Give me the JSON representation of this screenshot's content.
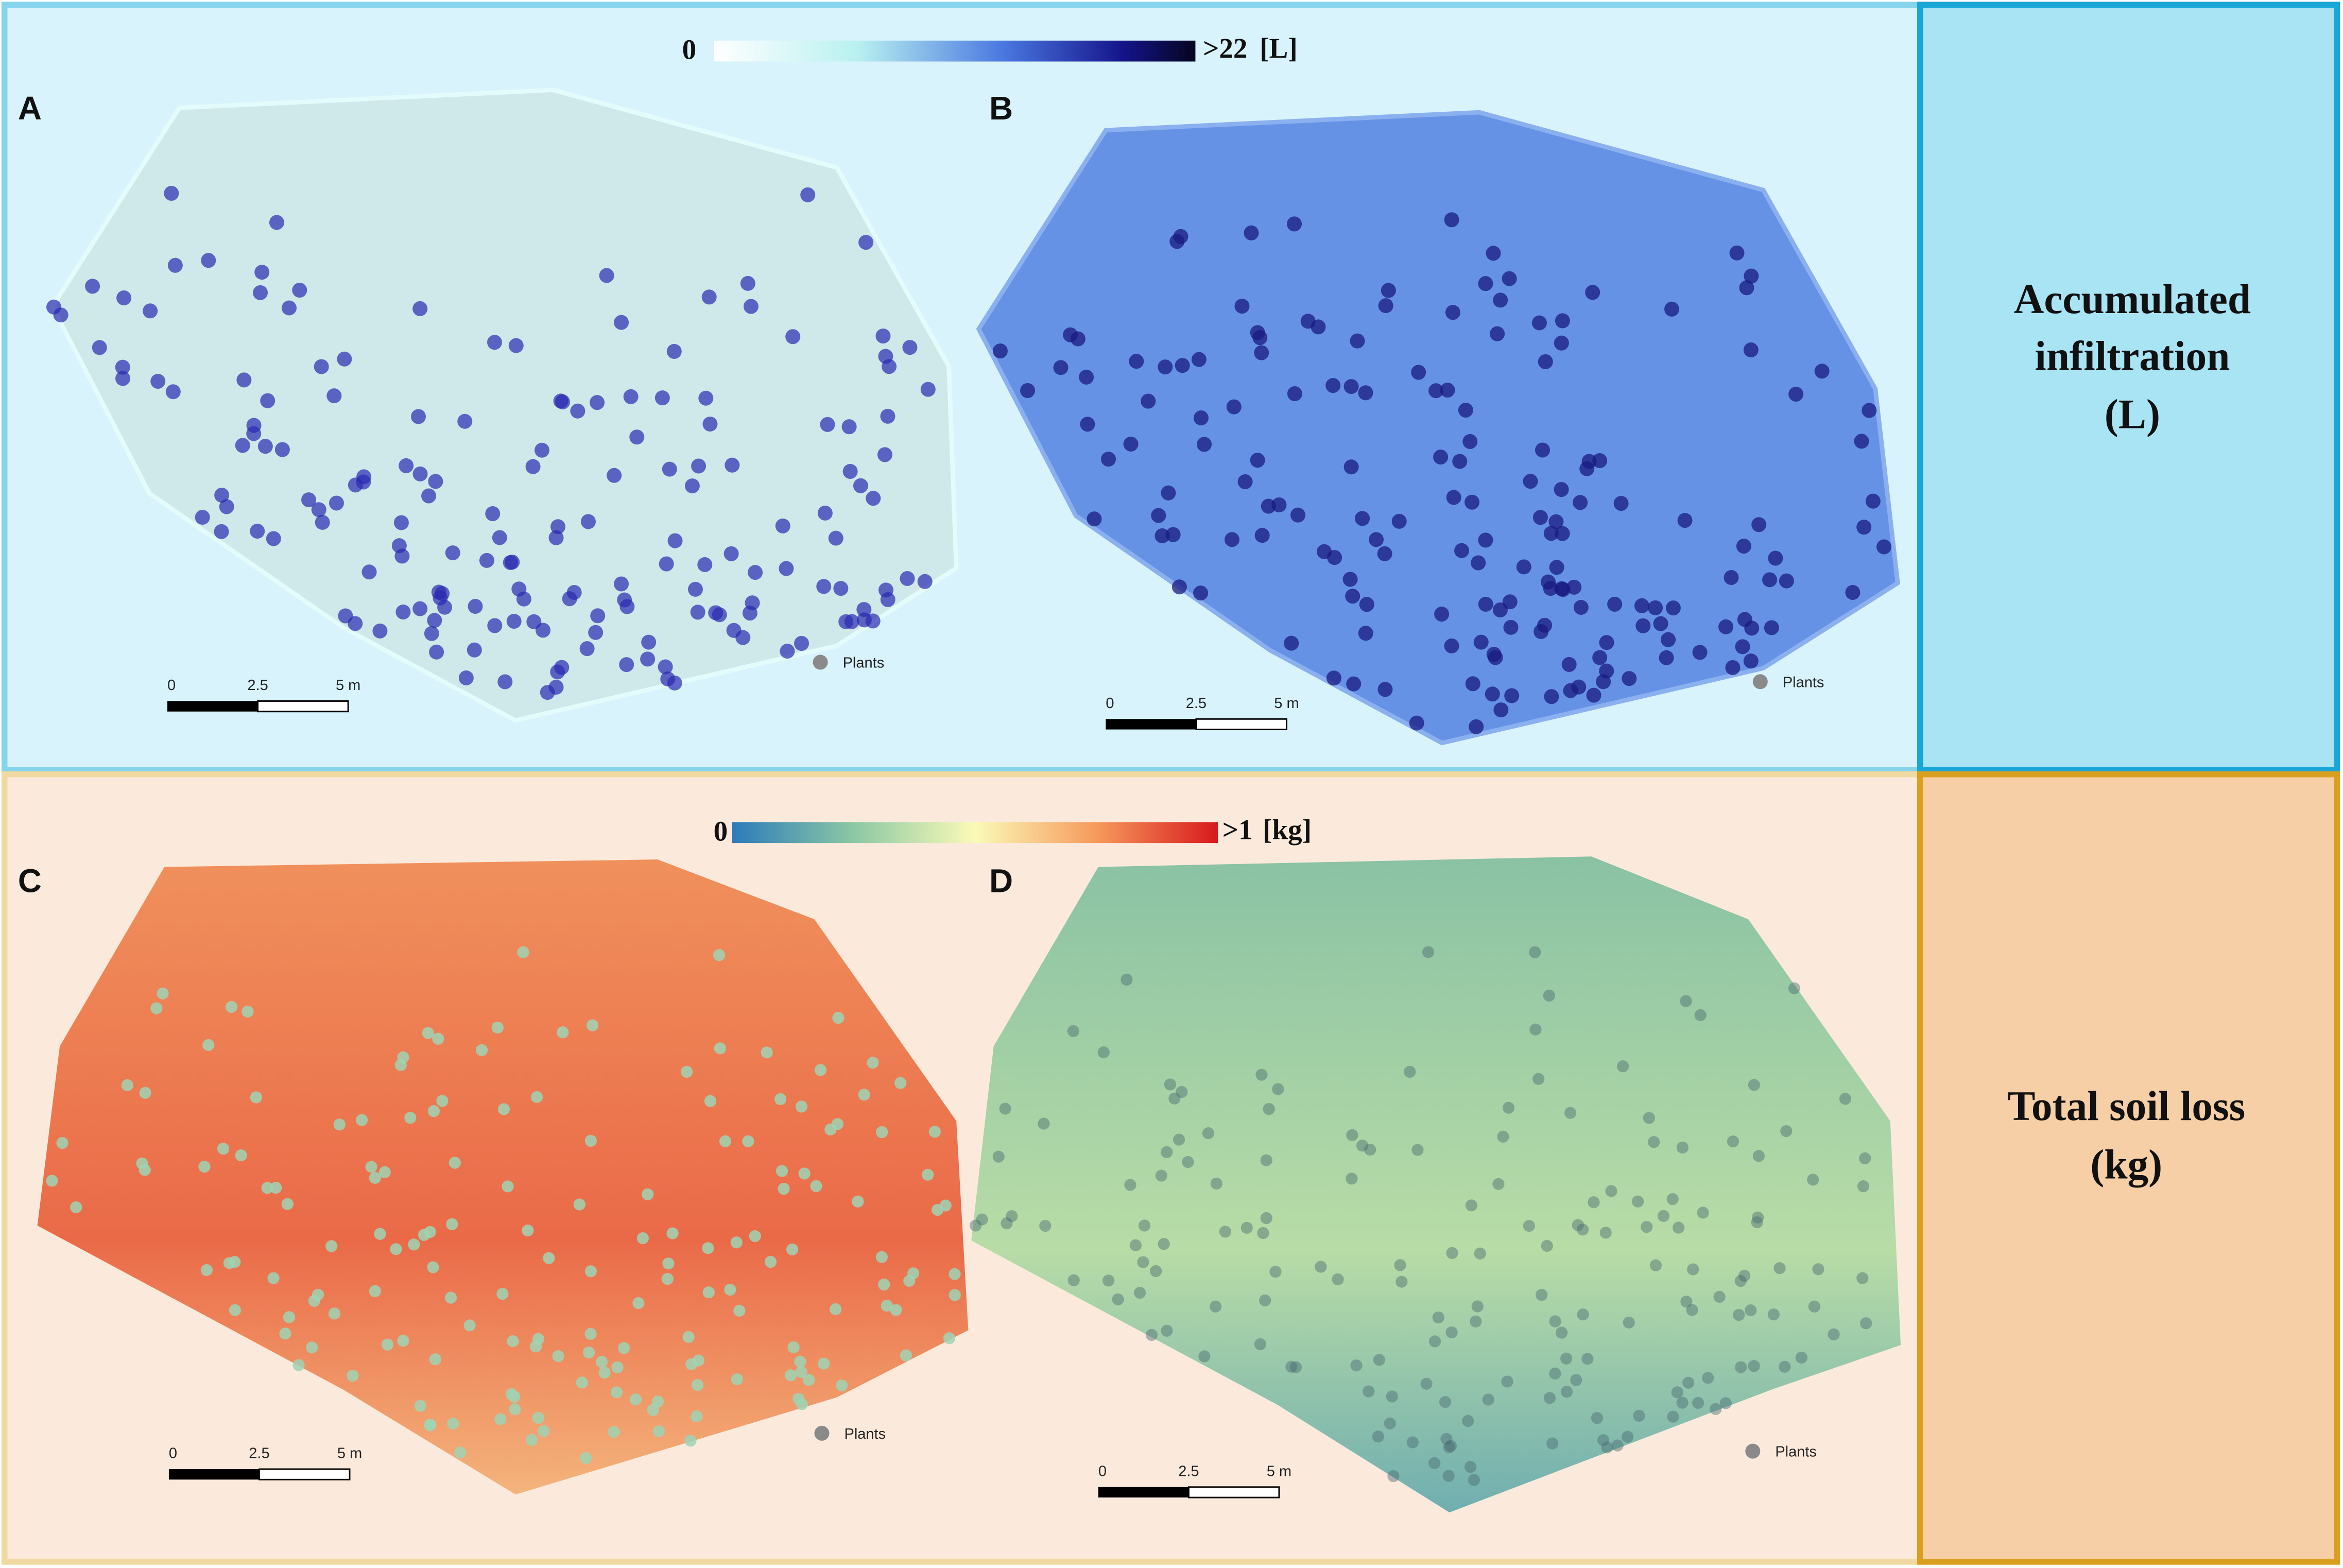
{
  "panels": [
    {
      "letter": "A"
    },
    {
      "letter": "B"
    },
    {
      "letter": "C"
    },
    {
      "letter": "D"
    }
  ],
  "rows": [
    {
      "title_lines": [
        "Accumulated",
        "infiltration",
        "(L)"
      ],
      "colorbar": {
        "min_label": "0",
        "max_label": ">22",
        "unit": "[L]"
      }
    },
    {
      "title_lines": [
        "Total soil loss",
        "(kg)"
      ],
      "colorbar": {
        "min_label": "0",
        "max_label": ">1",
        "unit": "[kg]"
      }
    }
  ],
  "scale_bar": {
    "ticks": [
      "0",
      "2.5",
      "5 m"
    ]
  },
  "legend": {
    "label": "Plants"
  }
}
